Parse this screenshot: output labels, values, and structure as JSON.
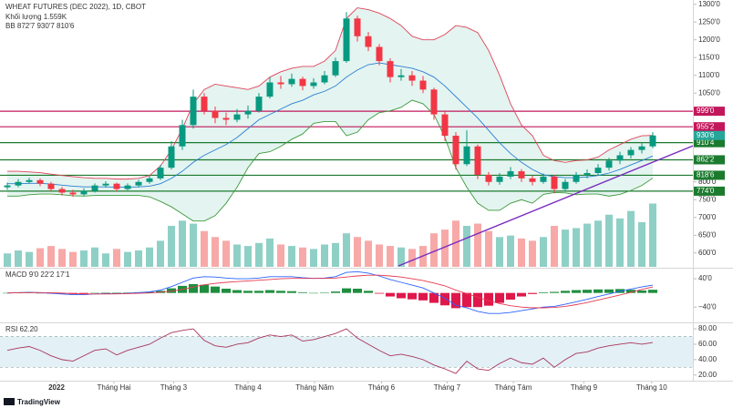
{
  "chart_data": {
    "type": "candlestick",
    "legend": [
      "WHEAT FUTURES (DEC 2022), 1D, CBOT",
      "Khối lượng 1.559K",
      "BB 872'7 930'7 810'6"
    ],
    "macd_legend": "MACD 9'0 22'2 17'1",
    "rsi_legend": "RSI 62.20",
    "brand": "TradingView",
    "up_color": "#089981",
    "down_color": "#f23645",
    "volume_up_color": "#8fd0c6",
    "volume_down_color": "#f7a9a8",
    "ylim": [
      561,
      1312
    ],
    "yticks": [
      {
        "value": 600,
        "label": "600'0"
      },
      {
        "value": 650,
        "label": "650'0"
      },
      {
        "value": 700,
        "label": "700'0"
      },
      {
        "value": 750,
        "label": "750'0"
      },
      {
        "value": 800,
        "label": "800'0"
      },
      {
        "value": 1050,
        "label": "1050'0"
      },
      {
        "value": 1100,
        "label": "1100'0"
      },
      {
        "value": 1150,
        "label": "1150'0"
      },
      {
        "value": 1200,
        "label": "1200'0"
      },
      {
        "value": 1250,
        "label": "1250'0"
      },
      {
        "value": 1300,
        "label": "1300'0"
      }
    ],
    "xticks": [
      {
        "value": 4.5,
        "label": "2022"
      },
      {
        "value": 9.75,
        "label": "Tháng Hai"
      },
      {
        "value": 15.2,
        "label": "Tháng 3"
      },
      {
        "value": 22,
        "label": "Tháng 4"
      },
      {
        "value": 28.1,
        "label": "Tháng Năm"
      },
      {
        "value": 34.2,
        "label": "Tháng 6"
      },
      {
        "value": 40.2,
        "label": "Tháng 7"
      },
      {
        "value": 46.25,
        "label": "Tháng Tám"
      },
      {
        "value": 52.7,
        "label": "Tháng 9"
      },
      {
        "value": 58.9,
        "label": "Tháng 10"
      }
    ],
    "ohlc": [
      [
        785,
        798,
        778,
        790
      ],
      [
        790,
        808,
        785,
        800
      ],
      [
        800,
        812,
        795,
        805
      ],
      [
        805,
        810,
        788,
        795
      ],
      [
        795,
        800,
        774,
        780
      ],
      [
        780,
        786,
        762,
        770
      ],
      [
        770,
        778,
        758,
        765
      ],
      [
        765,
        782,
        760,
        775
      ],
      [
        775,
        796,
        770,
        790
      ],
      [
        790,
        802,
        784,
        795
      ],
      [
        795,
        798,
        772,
        780
      ],
      [
        780,
        796,
        776,
        790
      ],
      [
        790,
        806,
        785,
        800
      ],
      [
        800,
        818,
        795,
        810
      ],
      [
        810,
        848,
        805,
        840
      ],
      [
        840,
        915,
        835,
        900
      ],
      [
        900,
        975,
        890,
        960
      ],
      [
        960,
        1060,
        950,
        1040
      ],
      [
        1040,
        1050,
        990,
        1000
      ],
      [
        1000,
        1012,
        965,
        980
      ],
      [
        980,
        995,
        960,
        975
      ],
      [
        975,
        1005,
        968,
        990
      ],
      [
        990,
        1015,
        978,
        1000
      ],
      [
        1000,
        1050,
        995,
        1040
      ],
      [
        1040,
        1095,
        1035,
        1080
      ],
      [
        1080,
        1098,
        1062,
        1075
      ],
      [
        1075,
        1105,
        1068,
        1090
      ],
      [
        1090,
        1096,
        1058,
        1070
      ],
      [
        1070,
        1092,
        1062,
        1080
      ],
      [
        1080,
        1112,
        1075,
        1100
      ],
      [
        1100,
        1150,
        1095,
        1140
      ],
      [
        1140,
        1278,
        1135,
        1260
      ],
      [
        1260,
        1268,
        1195,
        1210
      ],
      [
        1210,
        1222,
        1168,
        1180
      ],
      [
        1180,
        1188,
        1128,
        1140
      ],
      [
        1140,
        1148,
        1080,
        1095
      ],
      [
        1095,
        1118,
        1085,
        1100
      ],
      [
        1100,
        1112,
        1070,
        1085
      ],
      [
        1085,
        1098,
        1050,
        1060
      ],
      [
        1060,
        1065,
        975,
        990
      ],
      [
        990,
        998,
        915,
        930
      ],
      [
        930,
        940,
        835,
        850
      ],
      [
        850,
        945,
        845,
        900
      ],
      [
        900,
        905,
        808,
        820
      ],
      [
        820,
        828,
        790,
        800
      ],
      [
        800,
        825,
        792,
        815
      ],
      [
        815,
        842,
        808,
        830
      ],
      [
        830,
        836,
        800,
        810
      ],
      [
        810,
        818,
        790,
        800
      ],
      [
        800,
        824,
        795,
        815
      ],
      [
        815,
        820,
        768,
        780
      ],
      [
        780,
        808,
        774,
        800
      ],
      [
        800,
        828,
        795,
        820
      ],
      [
        820,
        835,
        810,
        825
      ],
      [
        825,
        850,
        818,
        840
      ],
      [
        840,
        868,
        832,
        860
      ],
      [
        860,
        885,
        850,
        875
      ],
      [
        875,
        898,
        866,
        890
      ],
      [
        890,
        910,
        880,
        900
      ],
      [
        900,
        940,
        895,
        930.75
      ]
    ],
    "volume": [
      18,
      22,
      20,
      25,
      28,
      24,
      20,
      22,
      26,
      18,
      24,
      20,
      22,
      26,
      35,
      55,
      62,
      58,
      48,
      40,
      35,
      30,
      28,
      32,
      38,
      30,
      28,
      26,
      24,
      30,
      32,
      45,
      40,
      35,
      30,
      28,
      26,
      24,
      28,
      45,
      50,
      62,
      55,
      58,
      48,
      40,
      42,
      38,
      35,
      40,
      55,
      50,
      52,
      58,
      62,
      70,
      65,
      75,
      60,
      85
    ],
    "volume_ylim": [
      0,
      110
    ],
    "bb": {
      "fill": "#d9efea",
      "upper": {
        "color": "#e0435a",
        "values": [
          830,
          830,
          828,
          826,
          822,
          818,
          815,
          812,
          810,
          810,
          808,
          808,
          810,
          818,
          845,
          890,
          950,
          1020,
          1060,
          1075,
          1070,
          1065,
          1060,
          1070,
          1095,
          1110,
          1120,
          1125,
          1125,
          1140,
          1170,
          1260,
          1290,
          1285,
          1275,
          1260,
          1240,
          1210,
          1200,
          1200,
          1215,
          1240,
          1235,
          1220,
          1170,
          1100,
          1020,
          960,
          930,
          875,
          860,
          855,
          860,
          862,
          870,
          890,
          905,
          920,
          930,
          930.875
        ]
      },
      "middle": {
        "color": "#2a7fd4",
        "values": [
          795,
          795,
          796,
          796,
          794,
          791,
          788,
          786,
          786,
          786,
          785,
          785,
          786,
          788,
          795,
          810,
          830,
          855,
          875,
          890,
          905,
          925,
          950,
          975,
          990,
          1005,
          1020,
          1030,
          1045,
          1055,
          1070,
          1095,
          1115,
          1130,
          1135,
          1130,
          1125,
          1120,
          1110,
          1095,
          1070,
          1040,
          1010,
          980,
          945,
          910,
          880,
          855,
          835,
          820,
          815,
          812,
          812,
          814,
          818,
          825,
          835,
          848,
          860,
          872.875
        ]
      },
      "lower": {
        "color": "#3c9a3c",
        "values": [
          760,
          760,
          764,
          766,
          766,
          764,
          761,
          760,
          762,
          762,
          762,
          762,
          762,
          758,
          745,
          730,
          710,
          690,
          690,
          705,
          740,
          785,
          840,
          880,
          885,
          900,
          920,
          935,
          965,
          970,
          970,
          930,
          940,
          975,
          995,
          1000,
          1010,
          1030,
          1020,
          990,
          925,
          840,
          785,
          740,
          720,
          720,
          740,
          750,
          740,
          765,
          770,
          769,
          764,
          766,
          766,
          760,
          765,
          776,
          790,
          810.75
        ]
      }
    },
    "levels": [
      {
        "value": 999,
        "label": "999'0",
        "color": "#c2185b"
      },
      {
        "value": 955.25,
        "label": "955'2",
        "color": "#c2185b"
      },
      {
        "value": 910.5,
        "label": "910'4",
        "color": "#1b7a2e"
      },
      {
        "value": 862.25,
        "label": "862'2",
        "color": "#1b7a2e"
      },
      {
        "value": 818.75,
        "label": "818'6",
        "color": "#1b7a2e"
      },
      {
        "value": 774,
        "label": "774'0",
        "color": "#1b7a2e"
      }
    ],
    "last_price": {
      "value": 930.75,
      "label": "930'6",
      "color": "#26a69a"
    },
    "trendline": {
      "color": "#7b2cbf",
      "from": [
        35.75,
        563.5
      ],
      "to": [
        62.7,
        902
      ]
    },
    "macd": {
      "ylim": [
        -78,
        66
      ],
      "yticks": [
        {
          "value": 40,
          "label": "40'0"
        },
        {
          "value": -40,
          "label": "−40'0"
        }
      ],
      "macd_color": "#2962ff",
      "signal_color": "#e53950",
      "hist_up_color": "#1e8e3e",
      "hist_down_color": "#e0174a",
      "macd": [
        0,
        1,
        2,
        1,
        -1,
        -3,
        -5,
        -5,
        -3,
        -2,
        -2,
        -1,
        1,
        3,
        8,
        18,
        30,
        42,
        46,
        45,
        42,
        40,
        40,
        42,
        46,
        46,
        46,
        43,
        41,
        42,
        46,
        58,
        60,
        56,
        48,
        38,
        30,
        22,
        14,
        0,
        -15,
        -35,
        -42,
        -52,
        -58,
        -58,
        -55,
        -50,
        -45,
        -40,
        -38,
        -32,
        -25,
        -18,
        -10,
        -3,
        5,
        11,
        17,
        22.25
      ],
      "signal": [
        0,
        0.5,
        1,
        1,
        0.5,
        -0.5,
        -2,
        -3,
        -3,
        -3,
        -2.5,
        -2,
        -1,
        0,
        2,
        5,
        10,
        17,
        23,
        27,
        30,
        32,
        34,
        36,
        38,
        40,
        41,
        41,
        41,
        41,
        42,
        45,
        48,
        50,
        50,
        48,
        45,
        40,
        35,
        28,
        20,
        8,
        -2,
        -12,
        -22,
        -30,
        -36,
        -40,
        -42,
        -42,
        -41,
        -38,
        -33,
        -27,
        -20,
        -13,
        -6,
        2,
        10,
        17.125
      ],
      "histogram": [
        0,
        0.5,
        1,
        0,
        -1.5,
        -2.5,
        -3,
        -2,
        0,
        1,
        0.5,
        1,
        2,
        3,
        6,
        13,
        20,
        25,
        23,
        18,
        12,
        8,
        6,
        6,
        8,
        6,
        5,
        2,
        0,
        1,
        4,
        13,
        12,
        6,
        -2,
        -10,
        -15,
        -18,
        -21,
        -28,
        -35,
        -43,
        -40,
        -40,
        -36,
        -28,
        -19,
        -10,
        -3,
        2,
        3,
        6,
        8,
        9,
        10,
        10,
        11,
        9,
        7,
        9
      ]
    },
    "rsi": {
      "ylim": [
        15,
        86
      ],
      "yticks": [
        {
          "value": 80,
          "label": "80.00"
        },
        {
          "value": 60,
          "label": "60.00"
        },
        {
          "value": 40,
          "label": "40.00"
        },
        {
          "value": 20,
          "label": "20.00"
        }
      ],
      "band": [
        30,
        70
      ],
      "band_color": "#e3f0f5",
      "color": "#a8345c",
      "values": [
        52,
        55,
        57,
        52,
        45,
        40,
        38,
        45,
        52,
        54,
        46,
        52,
        56,
        60,
        68,
        75,
        78,
        80,
        65,
        58,
        56,
        60,
        62,
        68,
        72,
        70,
        72,
        64,
        66,
        70,
        74,
        80,
        68,
        60,
        52,
        45,
        47,
        44,
        40,
        33,
        28,
        22,
        38,
        28,
        26,
        35,
        42,
        36,
        34,
        42,
        30,
        40,
        48,
        50,
        55,
        58,
        60,
        62,
        60,
        62.2
      ]
    }
  }
}
